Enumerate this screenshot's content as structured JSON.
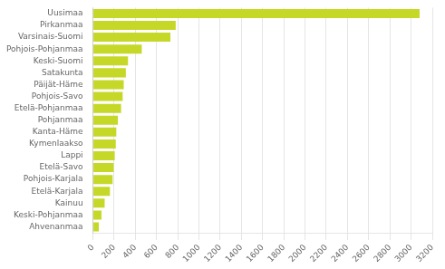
{
  "chart_data": {
    "type": "bar",
    "orientation": "horizontal",
    "categories": [
      "Ahvenanmaa",
      "Keski-Pohjanmaa",
      "Kainuu",
      "Etelä-Karjala",
      "Pohjois-Karjala",
      "Etelä-Savo",
      "Lappi",
      "Kymenlaakso",
      "Kanta-Häme",
      "Pohjanmaa",
      "Etelä-Pohjanmaa",
      "Pohjois-Savo",
      "Päijät-Häme",
      "Satakunta",
      "Keski-Suomi",
      "Pohjois-Pohjanmaa",
      "Varsinais-Suomi",
      "Pirkanmaa",
      "Uusimaa"
    ],
    "values": [
      55,
      80,
      110,
      160,
      185,
      195,
      205,
      215,
      220,
      235,
      265,
      280,
      290,
      310,
      330,
      460,
      730,
      780,
      3080
    ],
    "color": "#c5d827",
    "xlim": [
      0,
      3200
    ],
    "xticks": [
      0,
      200,
      400,
      600,
      800,
      1000,
      1200,
      1400,
      1600,
      1800,
      2000,
      2200,
      2400,
      2600,
      2800,
      3000,
      3200
    ],
    "grid": true
  }
}
